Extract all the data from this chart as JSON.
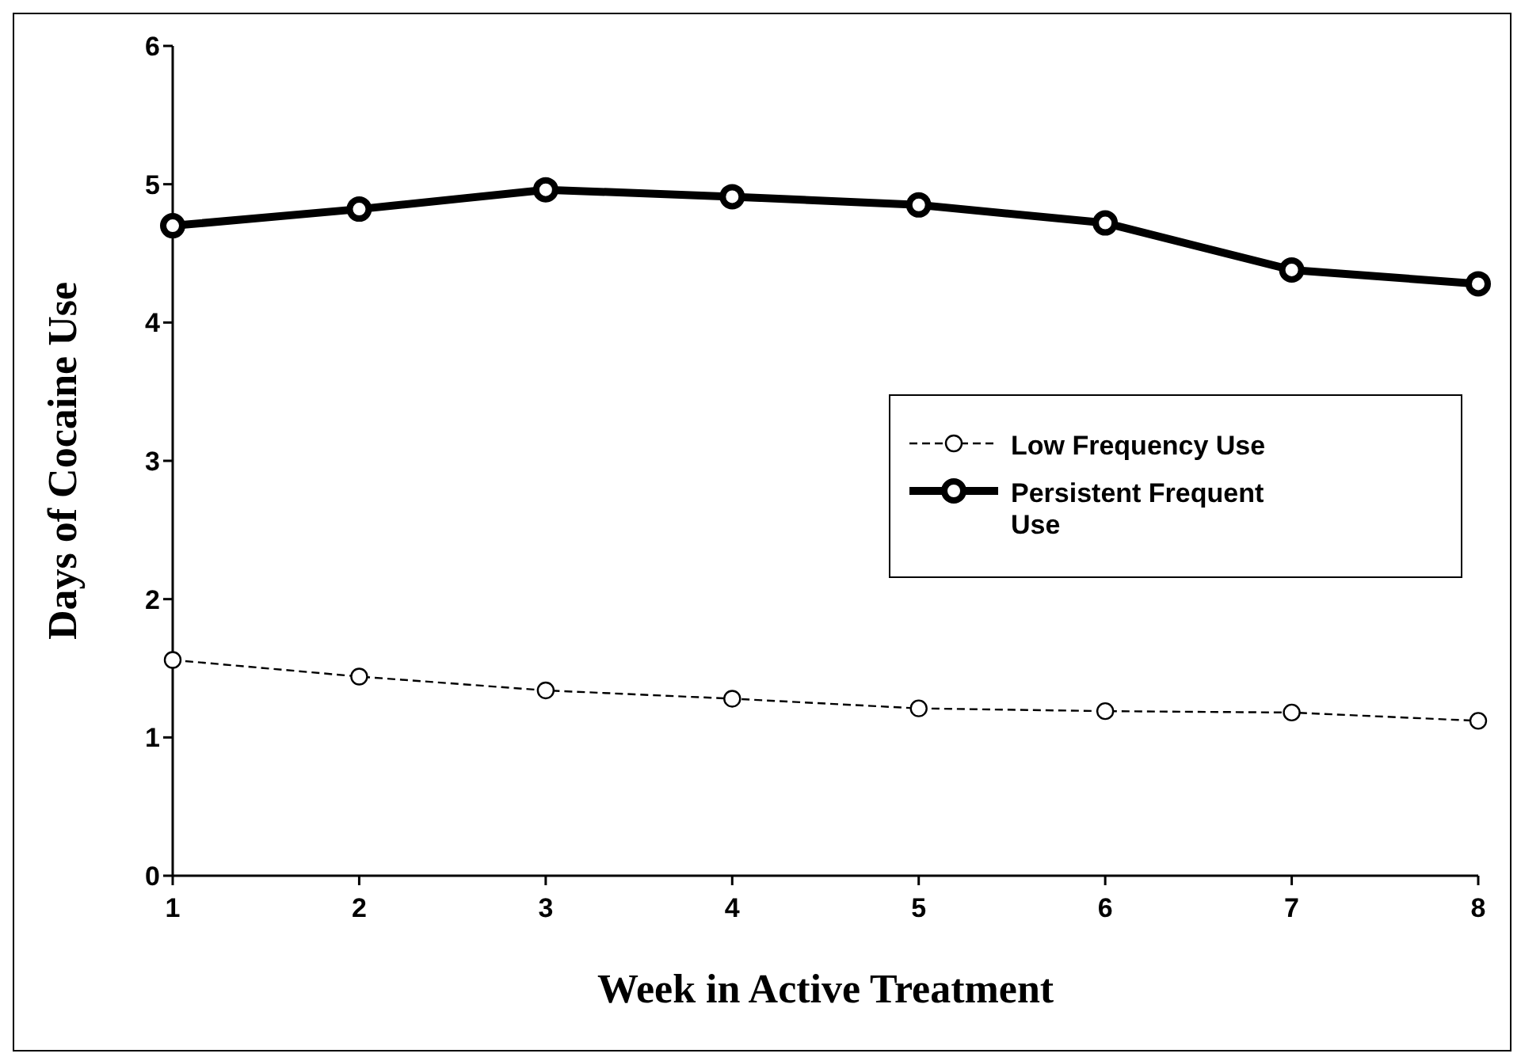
{
  "chart_data": {
    "type": "line",
    "xlabel": "Week in Active Treatment",
    "ylabel": "Days of Cocaine Use",
    "categories": [
      "1",
      "2",
      "3",
      "4",
      "5",
      "6",
      "7",
      "8"
    ],
    "series": [
      {
        "name": "Low Frequency Use",
        "color": "#000000",
        "values": [
          1.56,
          1.44,
          1.34,
          1.28,
          1.21,
          1.19,
          1.18,
          1.12
        ],
        "line_style": "dashed",
        "marker": "circle"
      },
      {
        "name": "Persistent Frequent Use",
        "color": "#000000",
        "values": [
          4.7,
          4.82,
          4.96,
          4.91,
          4.85,
          4.72,
          4.38,
          4.28
        ],
        "line_style": "solid",
        "marker": "circle"
      }
    ],
    "ylim": [
      0,
      6
    ],
    "yticks": [
      0,
      1,
      2,
      3,
      4,
      5,
      6
    ],
    "grid": false,
    "legend": "right"
  }
}
